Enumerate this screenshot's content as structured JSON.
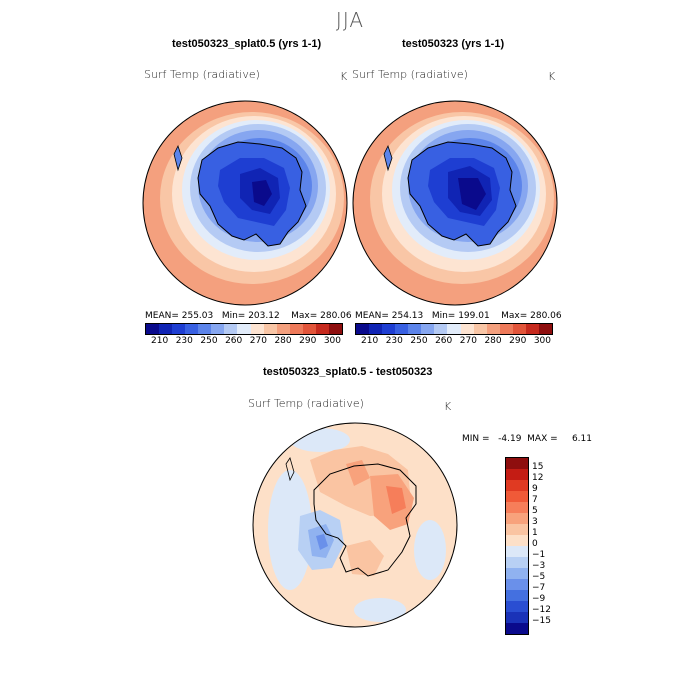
{
  "figure": {
    "season": "JJA"
  },
  "panels": [
    {
      "case_title": "test050323_splat0.5 (yrs 1-1)",
      "variable": "Surf Temp (radiative)",
      "unit": "K",
      "stats": "MEAN= 255.03   Min= 203.12    Max= 280.06"
    },
    {
      "case_title": "test050323 (yrs 1-1)",
      "variable": "Surf Temp (radiative)",
      "unit": "K",
      "stats": "MEAN= 254.13   Min= 199.01    Max= 280.06"
    }
  ],
  "abs_colorbar": {
    "colors": [
      "#0a0a8c",
      "#1024b4",
      "#1e3ed2",
      "#3860e2",
      "#5c84ea",
      "#86a6f0",
      "#b4caf4",
      "#e2ecfa",
      "#fde4d2",
      "#f9c6a6",
      "#f4a07e",
      "#ee7a5a",
      "#e2553a",
      "#c62a1e",
      "#8e0e0e"
    ],
    "tick_labels": [
      "210",
      "230",
      "250",
      "260",
      "270",
      "280",
      "290",
      "300"
    ]
  },
  "diff": {
    "title": "test050323_splat0.5 - test050323",
    "variable": "Surf Temp (radiative)",
    "unit": "K",
    "stats": "MIN =   -4.19  MAX =     6.11",
    "colorbar": {
      "colors": [
        "#8e0e0e",
        "#c41c14",
        "#e03a22",
        "#f05a38",
        "#f67e5a",
        "#f8a27c",
        "#fac4a2",
        "#fde0c8",
        "#dce8f8",
        "#b8d0f4",
        "#90b2f0",
        "#6a90ea",
        "#4470e0",
        "#2a4ed2",
        "#1a32b8",
        "#0a0a8c"
      ],
      "labels": [
        "15",
        "12",
        "9",
        "7",
        "5",
        "3",
        "1",
        "0",
        "−1",
        "−3",
        "−5",
        "−7",
        "−9",
        "−12",
        "−15"
      ]
    }
  }
}
